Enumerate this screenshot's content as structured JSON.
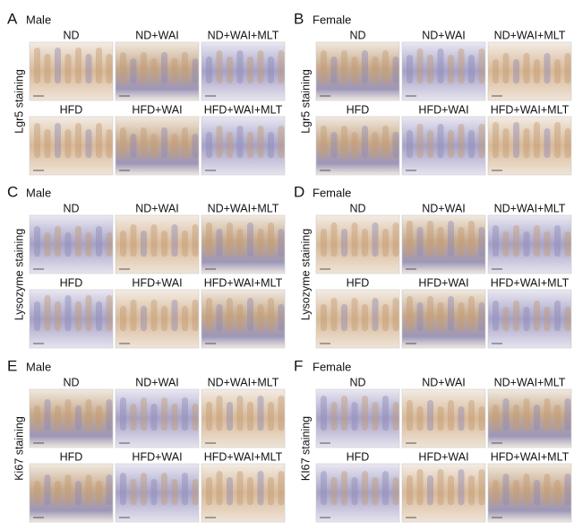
{
  "panels": [
    {
      "letter": "A",
      "sex": "Male",
      "stain": "Lgr5 staining",
      "images": [
        {
          "label": "ND"
        },
        {
          "label": "ND+WAI"
        },
        {
          "label": "ND+WAI+MLT"
        },
        {
          "label": "HFD"
        },
        {
          "label": "HFD+WAI"
        },
        {
          "label": "HFD+WAI+MLT"
        }
      ]
    },
    {
      "letter": "B",
      "sex": "Female",
      "stain": "Lgr5 staining",
      "images": [
        {
          "label": "ND"
        },
        {
          "label": "ND+WAI"
        },
        {
          "label": "ND+WAI+MLT"
        },
        {
          "label": "HFD"
        },
        {
          "label": "HFD+WAI"
        },
        {
          "label": "HFD+WAI+MLT"
        }
      ]
    },
    {
      "letter": "C",
      "sex": "Male",
      "stain": "Lysozyme staining",
      "images": [
        {
          "label": "ND"
        },
        {
          "label": "ND+WAI"
        },
        {
          "label": "ND+WAI+MLT"
        },
        {
          "label": "HFD"
        },
        {
          "label": "HFD+WAI"
        },
        {
          "label": "HFD+WAI+MLT"
        }
      ]
    },
    {
      "letter": "D",
      "sex": "Female",
      "stain": "Lysozyme staining",
      "images": [
        {
          "label": "ND"
        },
        {
          "label": "ND+WAI"
        },
        {
          "label": "ND+WAI+MLT"
        },
        {
          "label": "HFD"
        },
        {
          "label": "HFD+WAI"
        },
        {
          "label": "HFD+WAI+MLT"
        }
      ]
    },
    {
      "letter": "E",
      "sex": "Male",
      "stain": "Ki67 staining",
      "images": [
        {
          "label": "ND"
        },
        {
          "label": "ND+WAI"
        },
        {
          "label": "ND+WAI+MLT"
        },
        {
          "label": "HFD"
        },
        {
          "label": "HFD+WAI"
        },
        {
          "label": "HFD+WAI+MLT"
        }
      ]
    },
    {
      "letter": "F",
      "sex": "Female",
      "stain": "KI67 staining",
      "images": [
        {
          "label": "ND"
        },
        {
          "label": "ND+WAI"
        },
        {
          "label": "ND+WAI+MLT"
        },
        {
          "label": "HFD"
        },
        {
          "label": "HFD+WAI"
        },
        {
          "label": "HFD+WAI+MLT"
        }
      ]
    }
  ]
}
